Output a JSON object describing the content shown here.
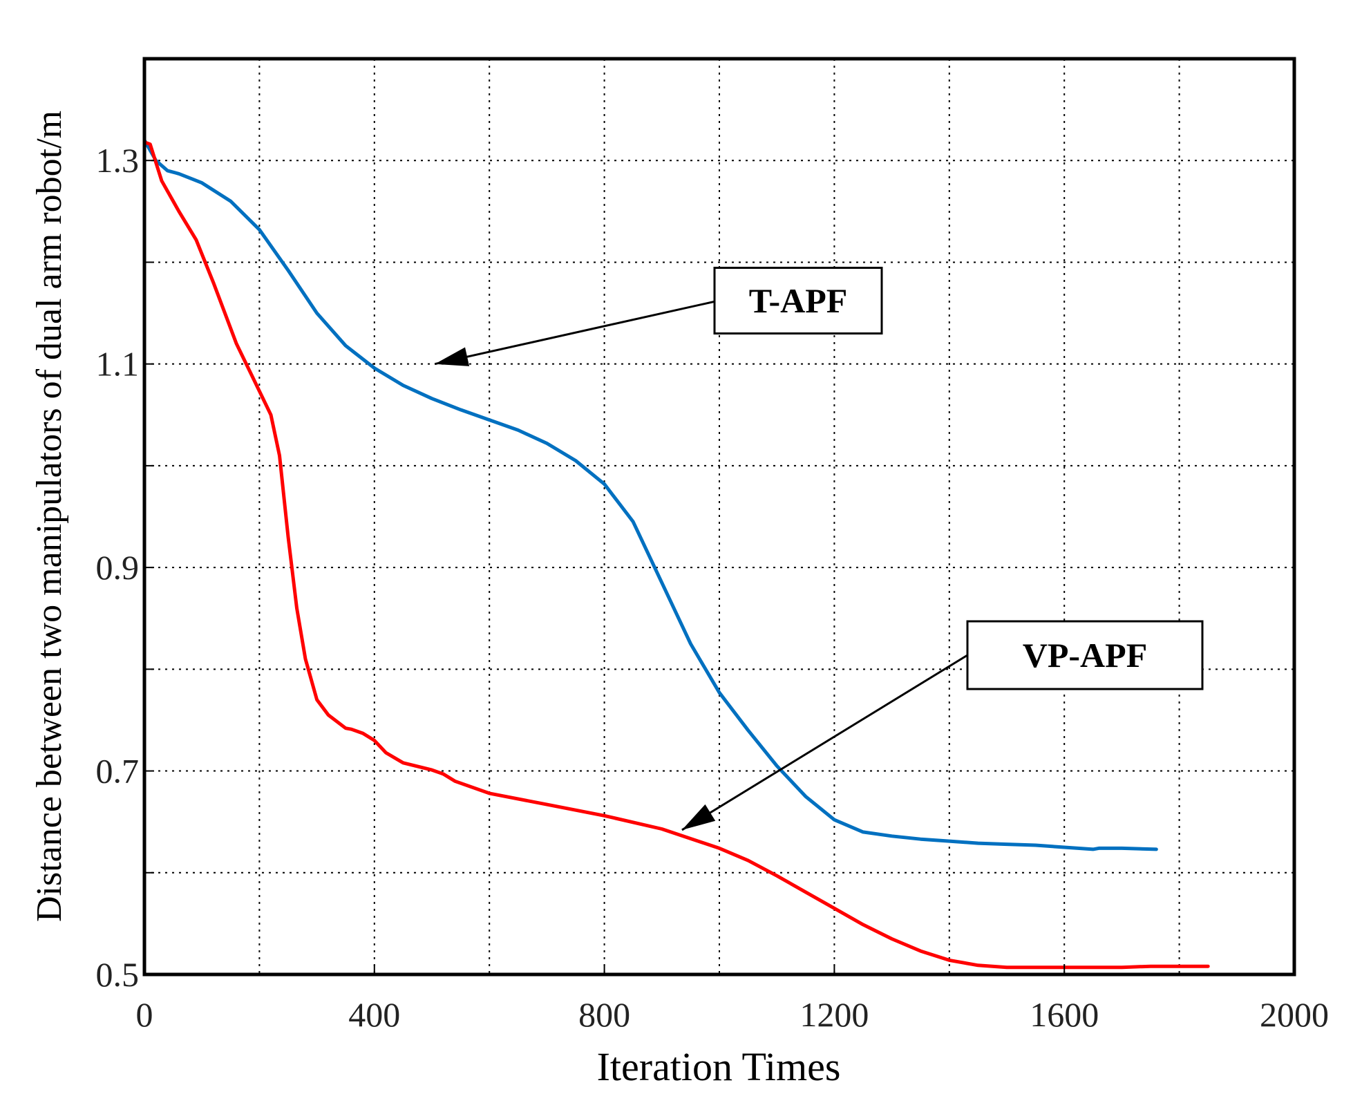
{
  "chart_data": {
    "type": "line",
    "title": "",
    "xlabel": "Iteration Times",
    "ylabel": "Distance between two manipulators of dual arm robot/m",
    "xlim": [
      0,
      2000
    ],
    "ylim": [
      0.5,
      1.4
    ],
    "xticks": [
      0,
      400,
      800,
      1200,
      1600,
      2000
    ],
    "xtick_labels": [
      "0",
      "400",
      "800",
      "1200",
      "1600",
      "2000"
    ],
    "yticks": [
      0.5,
      0.6,
      0.7,
      0.8,
      0.9,
      1.0,
      1.1,
      1.2,
      1.3
    ],
    "ytick_labels": [
      "0.5",
      "",
      "0.7",
      "",
      "0.9",
      "",
      "1.1",
      "",
      "1.3"
    ],
    "grid": true,
    "series": [
      {
        "name": "T-APF",
        "color": "#0070C0",
        "x": [
          0,
          20,
          40,
          60,
          100,
          150,
          200,
          250,
          300,
          350,
          400,
          450,
          500,
          550,
          600,
          650,
          700,
          750,
          800,
          850,
          900,
          950,
          1000,
          1050,
          1100,
          1150,
          1200,
          1250,
          1300,
          1350,
          1400,
          1450,
          1500,
          1550,
          1600,
          1650,
          1660,
          1700,
          1760
        ],
        "values": [
          1.32,
          1.3,
          1.29,
          1.287,
          1.278,
          1.26,
          1.232,
          1.192,
          1.15,
          1.118,
          1.096,
          1.079,
          1.066,
          1.055,
          1.045,
          1.035,
          1.022,
          1.005,
          0.982,
          0.945,
          0.885,
          0.825,
          0.777,
          0.74,
          0.705,
          0.675,
          0.652,
          0.64,
          0.636,
          0.633,
          0.631,
          0.629,
          0.628,
          0.627,
          0.625,
          0.623,
          0.624,
          0.624,
          0.623
        ]
      },
      {
        "name": "VP-APF",
        "color": "#FF0000",
        "x": [
          0,
          10,
          30,
          60,
          90,
          120,
          160,
          190,
          220,
          235,
          250,
          265,
          280,
          300,
          320,
          350,
          360,
          380,
          400,
          420,
          450,
          500,
          520,
          540,
          600,
          700,
          800,
          900,
          1000,
          1050,
          1100,
          1150,
          1200,
          1250,
          1300,
          1350,
          1400,
          1450,
          1500,
          1550,
          1600,
          1650,
          1700,
          1750,
          1800,
          1850
        ],
        "values": [
          1.318,
          1.316,
          1.28,
          1.25,
          1.222,
          1.18,
          1.12,
          1.085,
          1.05,
          1.01,
          0.93,
          0.86,
          0.81,
          0.77,
          0.755,
          0.742,
          0.741,
          0.737,
          0.73,
          0.718,
          0.708,
          0.701,
          0.697,
          0.69,
          0.678,
          0.667,
          0.656,
          0.643,
          0.624,
          0.612,
          0.597,
          0.581,
          0.565,
          0.549,
          0.535,
          0.523,
          0.514,
          0.509,
          0.507,
          0.507,
          0.507,
          0.507,
          0.507,
          0.508,
          0.508,
          0.508
        ]
      }
    ],
    "annotations": [
      {
        "text": "T-APF",
        "target": [
          505,
          1.1
        ]
      },
      {
        "text": "VP-APF",
        "target": [
          935,
          0.642
        ]
      }
    ]
  }
}
